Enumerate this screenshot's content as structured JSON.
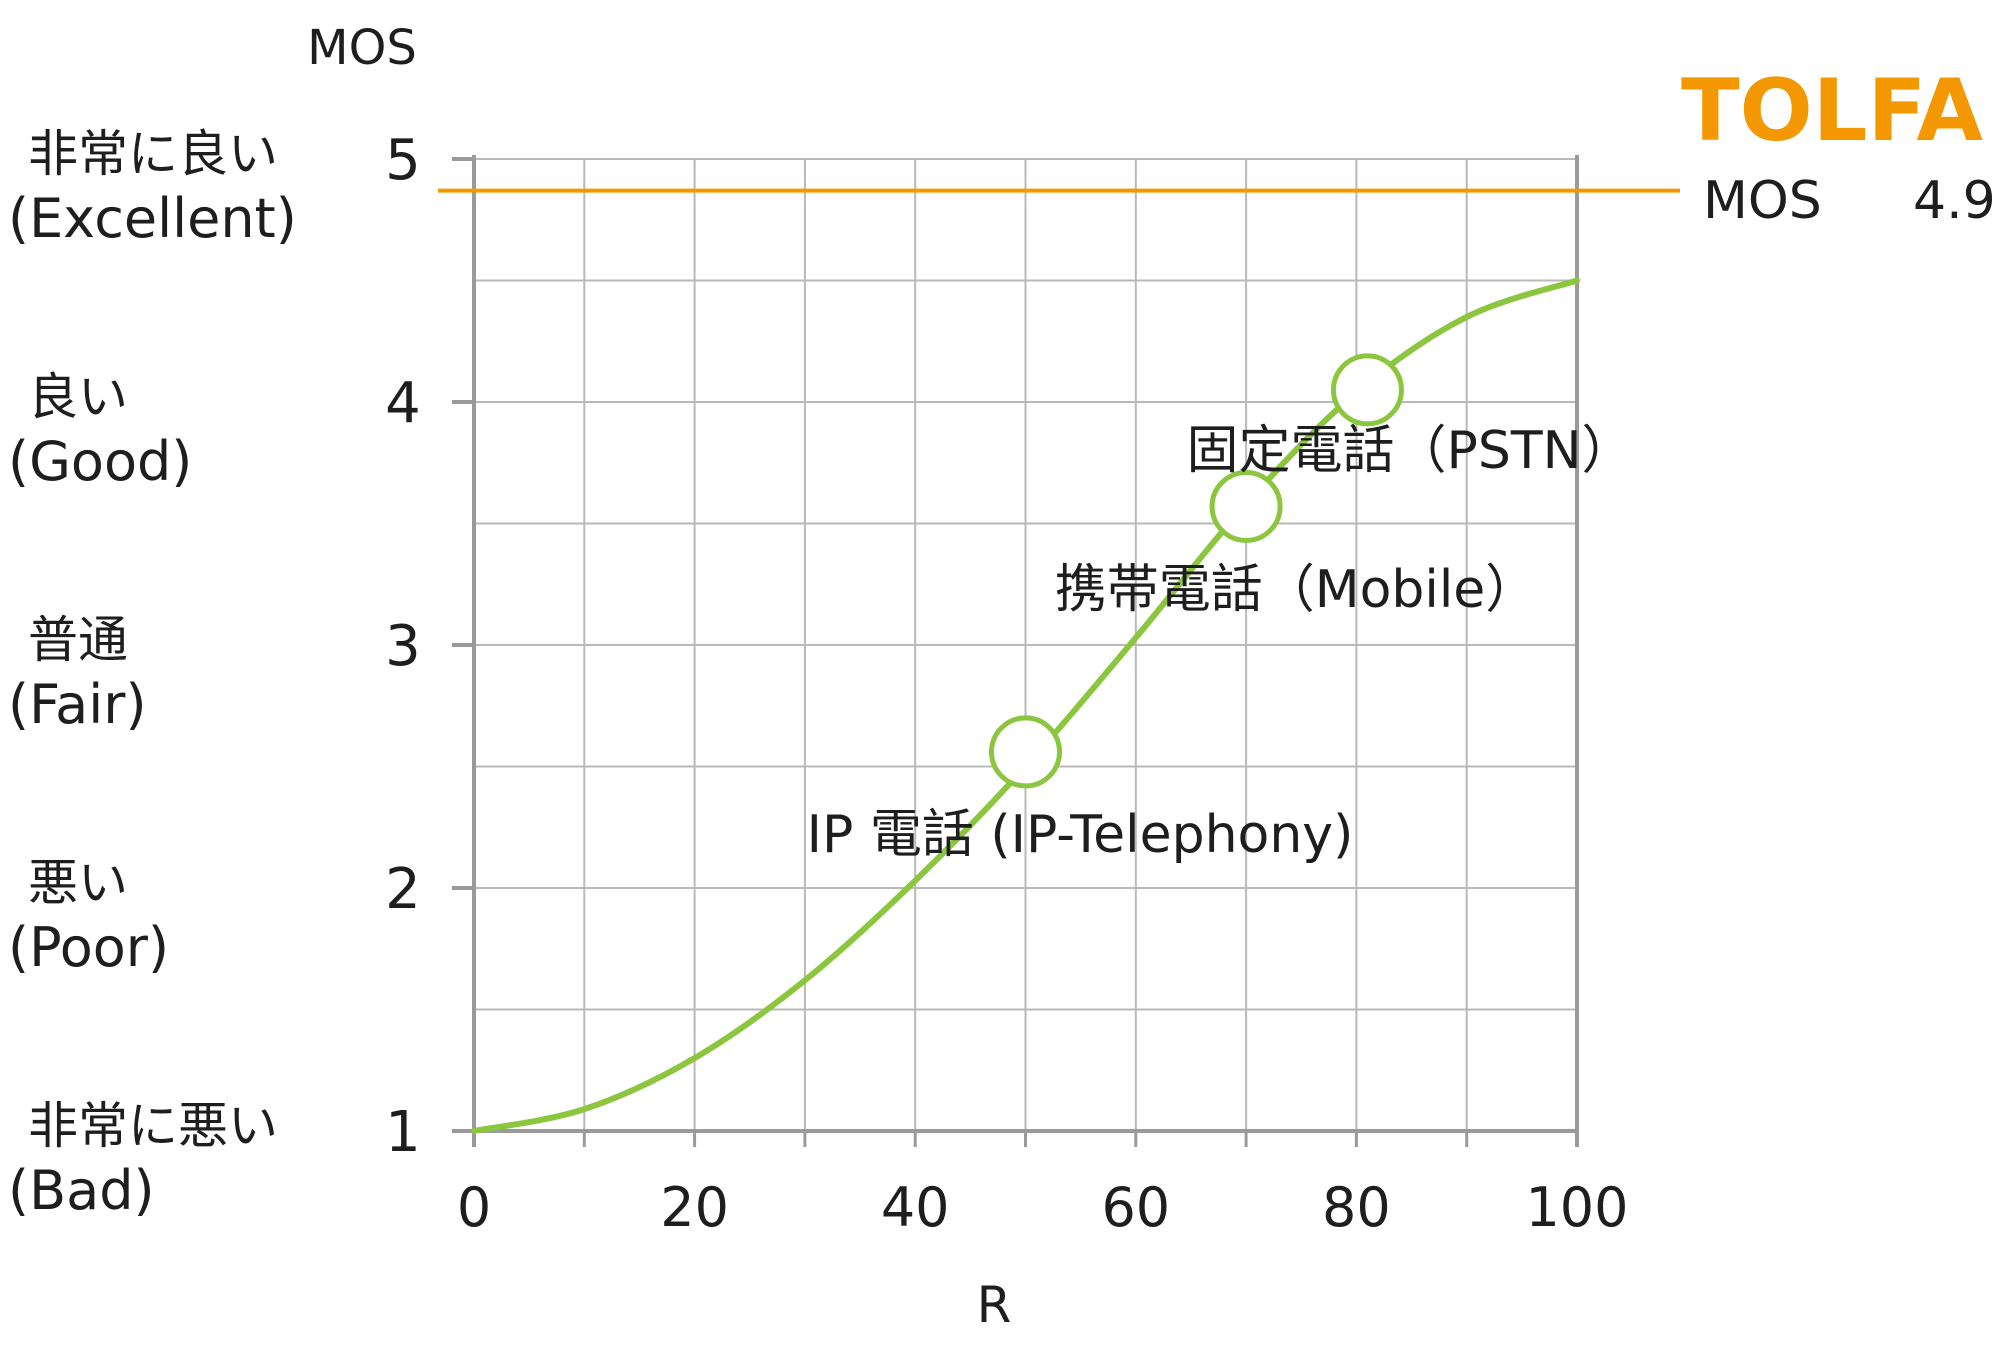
{
  "chart_data": {
    "type": "line",
    "title": "",
    "xlabel": "R",
    "ylabel": "MOS",
    "xlim": [
      0,
      100
    ],
    "ylim": [
      1,
      5
    ],
    "x_ticks": [
      "0",
      "20",
      "40",
      "60",
      "80",
      "100"
    ],
    "y_ticks": [
      "1",
      "2",
      "3",
      "4",
      "5"
    ],
    "grid": true,
    "y_category_labels": [
      {
        "value": 5,
        "jp": "非常に良い",
        "en": "(Excellent)"
      },
      {
        "value": 4,
        "jp": "良い",
        "en": "(Good)"
      },
      {
        "value": 3,
        "jp": "普通",
        "en": "(Fair)"
      },
      {
        "value": 2,
        "jp": "悪い",
        "en": "(Poor)"
      },
      {
        "value": 1,
        "jp": "非常に悪い",
        "en": "(Bad)"
      }
    ],
    "series": [
      {
        "x": [
          0,
          10,
          20,
          30,
          40,
          50,
          60,
          70,
          80,
          90,
          100
        ],
        "y": [
          1.0,
          1.09,
          1.3,
          1.62,
          2.03,
          2.5,
          3.03,
          3.58,
          4.04,
          4.35,
          4.5
        ],
        "color": "#8cc63f"
      }
    ],
    "markers": [
      {
        "x": 50,
        "y": 2.56,
        "label": "IP 電話 (IP-Telephony)"
      },
      {
        "x": 70,
        "y": 3.57,
        "label": "携帯電話（Mobile）"
      },
      {
        "x": 81,
        "y": 4.05,
        "label": "固定電話（PSTN）"
      }
    ],
    "reference_line": {
      "y": 4.87,
      "color": "#f39800"
    }
  },
  "brand": {
    "name": "TOLFA",
    "mos_label": "MOS",
    "mos_value": "4.9",
    "color": "#f39800"
  }
}
